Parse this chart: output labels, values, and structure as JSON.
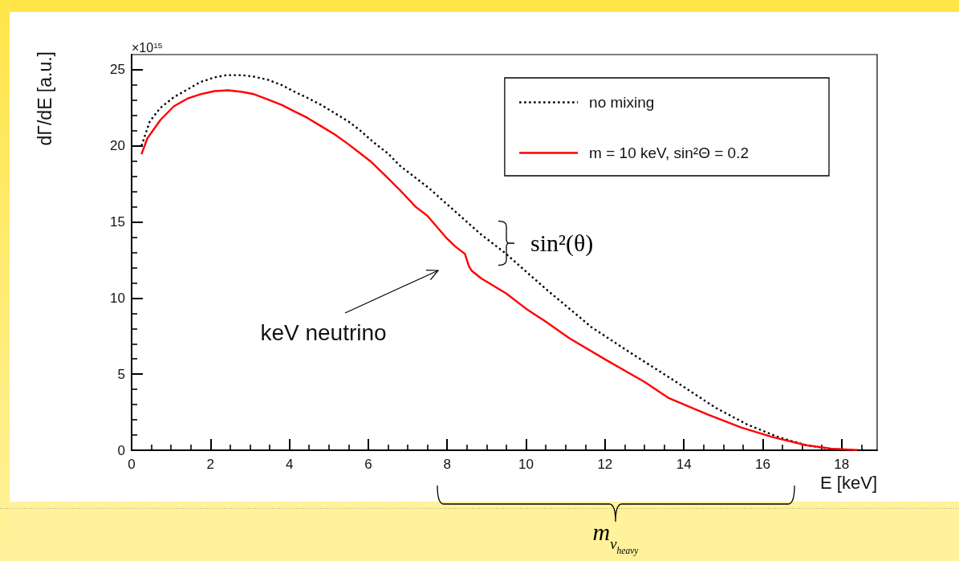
{
  "chart_data": {
    "type": "line",
    "xlabel": "E [keV]",
    "ylabel": "dΓ/dE [a.u.]",
    "annotations": [
      "×10$^{15}$",
      "keV neutrino",
      "sin²(θ)",
      "m$_{ν}$$_{heavy}$"
    ],
    "series": [
      {
        "name": "no mixing",
        "color": "#000000",
        "line_style": "dotted",
        "x": [
          0.25,
          0.46,
          0.73,
          1.07,
          1.41,
          1.75,
          2.1,
          2.4,
          2.8,
          3.1,
          3.45,
          3.8,
          4.1,
          4.5,
          4.8,
          5.15,
          5.5,
          5.8,
          6.15,
          6.5,
          6.8,
          7.2,
          7.55,
          7.85,
          8.2,
          8.85,
          9.45,
          9.8,
          10.5,
          11.4,
          11.65,
          12.65,
          13.8,
          14.8,
          15.6,
          16.4,
          17.1,
          17.7,
          18.15,
          18.55
        ],
        "values": [
          20.0,
          21.6,
          22.5,
          23.2,
          23.7,
          24.2,
          24.5,
          24.65,
          24.65,
          24.55,
          24.35,
          24.0,
          23.6,
          23.1,
          22.7,
          22.15,
          21.6,
          21.0,
          20.2,
          19.5,
          18.7,
          17.9,
          17.2,
          16.5,
          15.7,
          14.2,
          13.0,
          12.2,
          10.6,
          8.65,
          8.1,
          6.4,
          4.5,
          2.8,
          1.7,
          0.86,
          0.33,
          0.1,
          0.01,
          0
        ]
      },
      {
        "name": "m = 10 keV, sin²Θ = 0.2",
        "color": "#ff0000",
        "line_style": "solid",
        "x": [
          0.25,
          0.4,
          0.73,
          1.07,
          1.41,
          1.75,
          2.1,
          2.45,
          2.8,
          3.1,
          3.45,
          3.8,
          4.1,
          4.45,
          4.8,
          5.15,
          5.5,
          5.8,
          6.05,
          6.45,
          6.8,
          7.2,
          7.5,
          8.0,
          8.2,
          8.45,
          8.55,
          8.62,
          8.86,
          9.5,
          10.0,
          10.5,
          11.1,
          12.05,
          13.0,
          13.6,
          14.6,
          15.45,
          16.25,
          17.1,
          17.75,
          18.4
        ],
        "values": [
          19.45,
          20.5,
          21.7,
          22.6,
          23.1,
          23.4,
          23.6,
          23.65,
          23.55,
          23.4,
          23.05,
          22.7,
          22.3,
          21.85,
          21.3,
          20.75,
          20.1,
          19.5,
          19.0,
          18.0,
          17.1,
          16.0,
          15.4,
          13.9,
          13.4,
          12.9,
          12.1,
          11.8,
          11.3,
          10.3,
          9.3,
          8.45,
          7.36,
          5.9,
          4.5,
          3.45,
          2.35,
          1.5,
          0.86,
          0.33,
          0.1,
          0.01
        ]
      }
    ],
    "xlim": [
      0,
      18.9
    ],
    "xticks": [
      0,
      2,
      4,
      6,
      8,
      10,
      12,
      14,
      16,
      18
    ],
    "ylim": [
      0,
      26
    ],
    "yticks": [
      0,
      5,
      10,
      15,
      20,
      25
    ],
    "legend": "top right"
  }
}
